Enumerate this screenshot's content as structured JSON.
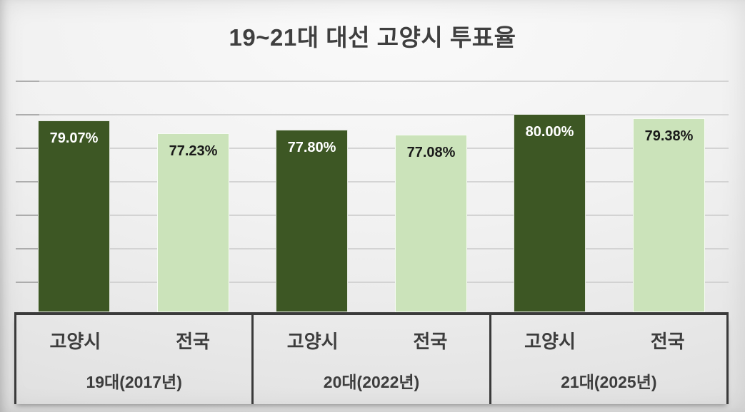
{
  "chart_data": {
    "type": "bar",
    "title": "19~21대 대선 고양시 투표율",
    "categories": [
      "19대(2017년)",
      "20대(2022년)",
      "21대(2025년)"
    ],
    "series": [
      {
        "name": "고양시",
        "values": [
          79.07,
          77.8,
          80.0
        ],
        "labels": [
          "79.07%",
          "77.80%",
          "80.00%"
        ],
        "color": "#3d5724",
        "label_color": "#ffffff"
      },
      {
        "name": "전국",
        "values": [
          77.23,
          77.08,
          79.38
        ],
        "labels": [
          "77.23%",
          "77.08%",
          "79.38%"
        ],
        "color": "#cbe3ba",
        "label_color": "#1a1a1a"
      }
    ],
    "xlabel": "",
    "ylabel": "",
    "ylim": [
      52,
      85
    ],
    "y_axis_visible": false,
    "gridlines": "horizontal",
    "legend_position": "none",
    "data_labels": "inside-end",
    "category_axis": "multi-level: series name (고양시/전국) under each bar, election label under each group",
    "colors": {
      "title_text": "#3f3f3f",
      "axis_line": "#3a3a3a",
      "gridline": "#cecece",
      "background_light": "#fafafa",
      "background_dark": "#d6d6d6"
    }
  }
}
